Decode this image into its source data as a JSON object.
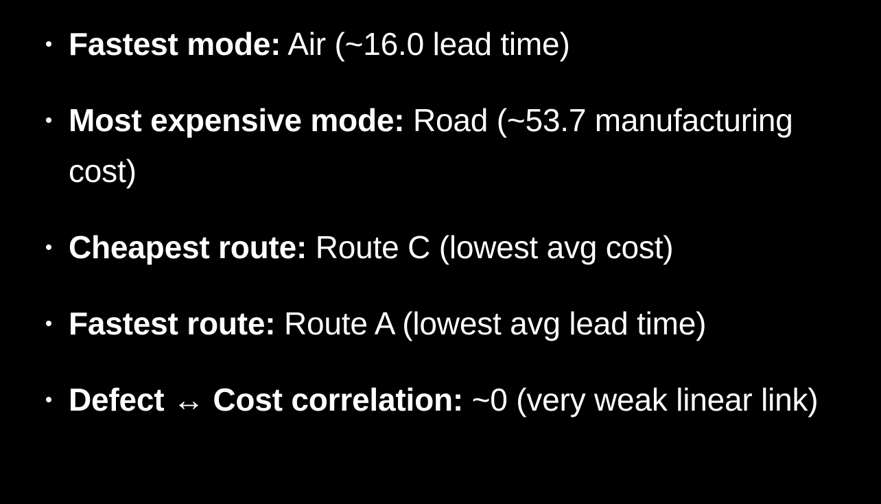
{
  "bullets": [
    {
      "label": "Fastest mode:",
      "text": "Air (~16.0 lead time)"
    },
    {
      "label": "Most expensive mode:",
      "text": "Road (~53.7 manufacturing cost)"
    },
    {
      "label": "Cheapest route:",
      "text": "Route C (lowest avg cost)"
    },
    {
      "label": "Fastest route:",
      "text": "Route A (lowest avg lead time)"
    },
    {
      "label": "Defect ↔ Cost correlation:",
      "text": "~0 (very weak linear link)"
    }
  ]
}
